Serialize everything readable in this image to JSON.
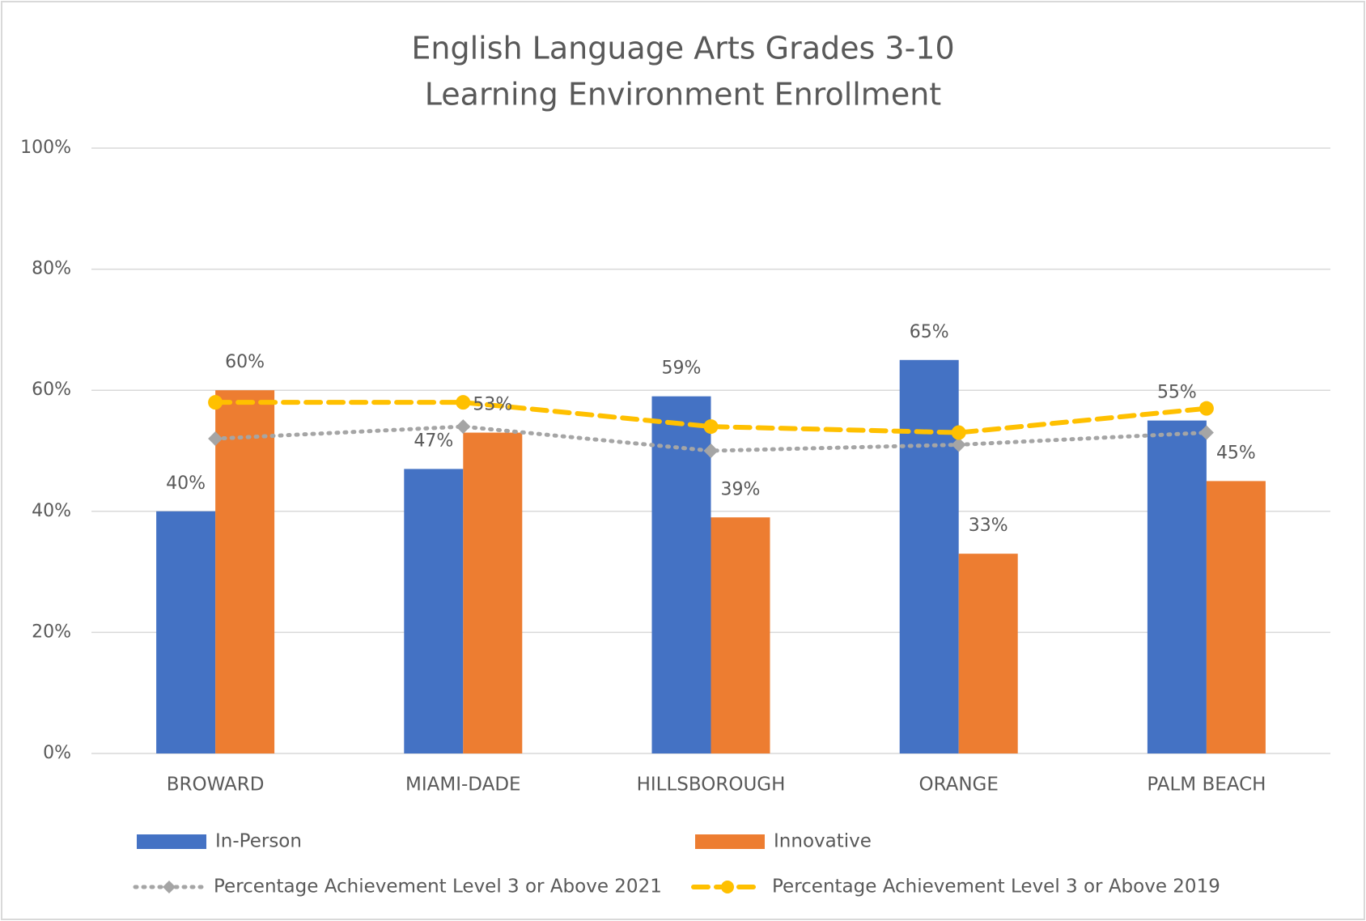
{
  "chart_data": {
    "type": "bar",
    "title": [
      "English Language Arts Grades 3-10",
      "Learning Environment Enrollment"
    ],
    "categories": [
      "BROWARD",
      "MIAMI-DADE",
      "HILLSBOROUGH",
      "ORANGE",
      "PALM BEACH"
    ],
    "series": [
      {
        "name": "In-Person",
        "type": "bar",
        "color": "#4472c4",
        "values": [
          40,
          47,
          59,
          65,
          55
        ],
        "value_labels": [
          "40%",
          "47%",
          "59%",
          "65%",
          "55%"
        ]
      },
      {
        "name": "Innovative",
        "type": "bar",
        "color": "#ed7d31",
        "values": [
          60,
          53,
          39,
          33,
          45
        ],
        "value_labels": [
          "60%",
          "53%",
          "39%",
          "33%",
          "45%"
        ]
      },
      {
        "name": "Percentage Achievement Level 3 or Above 2021",
        "type": "line",
        "line_style": "dotted",
        "marker": "diamond",
        "color": "#a5a5a5",
        "values": [
          52,
          54,
          50,
          51,
          53
        ]
      },
      {
        "name": "Percentage Achievement Level 3 or Above 2019",
        "type": "line",
        "line_style": "dashed",
        "marker": "circle",
        "color": "#ffc000",
        "values": [
          58,
          58,
          54,
          53,
          57
        ]
      }
    ],
    "ylim": [
      0,
      100
    ],
    "yticks": [
      {
        "value": 0,
        "label": "0%"
      },
      {
        "value": 20,
        "label": "20%"
      },
      {
        "value": 40,
        "label": "40%"
      },
      {
        "value": 60,
        "label": "60%"
      },
      {
        "value": 80,
        "label": "80%"
      },
      {
        "value": 100,
        "label": "100%"
      }
    ],
    "grid": true,
    "legend": "bottom"
  }
}
